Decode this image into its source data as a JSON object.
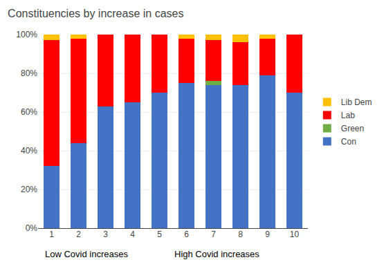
{
  "chart_data": {
    "type": "bar",
    "stacked": true,
    "title": "Constituencies by increase in cases",
    "categories": [
      1,
      2,
      3,
      4,
      5,
      6,
      7,
      8,
      9,
      10
    ],
    "series": [
      {
        "name": "Con",
        "color": "#4472C4",
        "values": [
          0.32,
          0.44,
          0.63,
          0.65,
          0.7,
          0.75,
          0.74,
          0.74,
          0.79,
          0.7
        ]
      },
      {
        "name": "Green",
        "color": "#70AD47",
        "values": [
          0.0,
          0.0,
          0.0,
          0.0,
          0.0,
          0.0,
          0.02,
          0.0,
          0.0,
          0.0
        ]
      },
      {
        "name": "Lab",
        "color": "#FF0000",
        "values": [
          0.65,
          0.54,
          0.37,
          0.35,
          0.3,
          0.23,
          0.21,
          0.22,
          0.19,
          0.3
        ]
      },
      {
        "name": "Lib Dem",
        "color": "#FFC000",
        "values": [
          0.03,
          0.02,
          0.0,
          0.0,
          0.0,
          0.02,
          0.03,
          0.04,
          0.02,
          0.0
        ]
      }
    ],
    "ylim": [
      0,
      1.0
    ],
    "yticks": [
      {
        "value": 0.0,
        "label": "0%"
      },
      {
        "value": 0.2,
        "label": "20%"
      },
      {
        "value": 0.4,
        "label": "40%"
      },
      {
        "value": 0.6,
        "label": "60%"
      },
      {
        "value": 0.8,
        "label": "80%"
      },
      {
        "value": 1.0,
        "label": "100%"
      }
    ],
    "annotations": [
      "Low Covid increases",
      "High Covid increases"
    ],
    "grid": true,
    "legend": "right"
  }
}
